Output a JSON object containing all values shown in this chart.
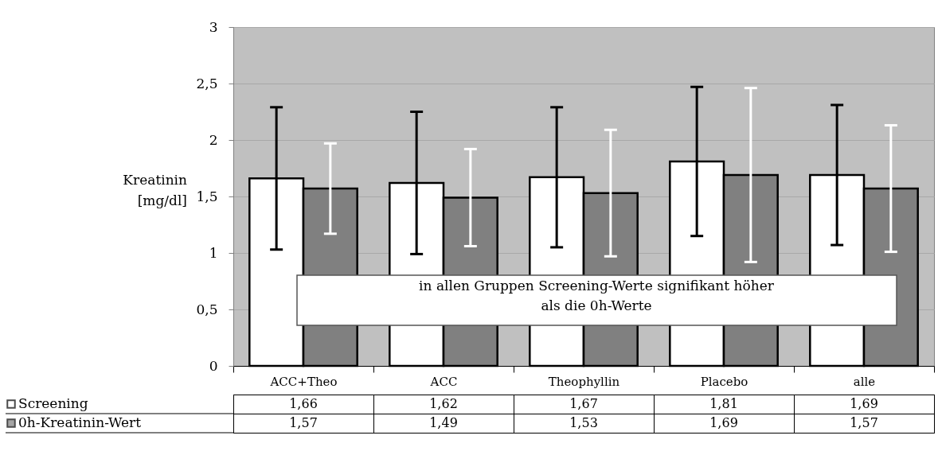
{
  "chart_data": {
    "type": "bar",
    "ylabel": "Kreatinin [mg/dl]",
    "categories": [
      "ACC+Theo",
      "ACC",
      "Theophyllin",
      "Placebo",
      "alle"
    ],
    "series": [
      {
        "name": "Screening",
        "color": "#ffffff",
        "values": [
          1.66,
          1.62,
          1.67,
          1.81,
          1.69
        ],
        "errors": [
          0.63,
          0.63,
          0.62,
          0.66,
          0.62
        ],
        "value_labels": [
          "1,66",
          "1,62",
          "1,67",
          "1,81",
          "1,69"
        ]
      },
      {
        "name": "0h-Kreatinin-Wert",
        "color": "#808080",
        "values": [
          1.57,
          1.49,
          1.53,
          1.69,
          1.57
        ],
        "errors": [
          0.4,
          0.43,
          0.56,
          0.77,
          0.56
        ],
        "value_labels": [
          "1,57",
          "1,49",
          "1,53",
          "1,69",
          "1,57"
        ]
      }
    ],
    "ylim": [
      0,
      3
    ],
    "yticks": [
      0,
      {
        "value": 0.5,
        "label": "0,5"
      },
      1,
      {
        "value": 1.5,
        "label": "1,5"
      },
      2,
      {
        "value": 2.5,
        "label": "2,5"
      },
      3
    ],
    "grid": "y",
    "legend": "bottom left",
    "annotations": [
      "in allen Gruppen Screening-Werte signifikant höher als die 0h-Werte"
    ]
  }
}
